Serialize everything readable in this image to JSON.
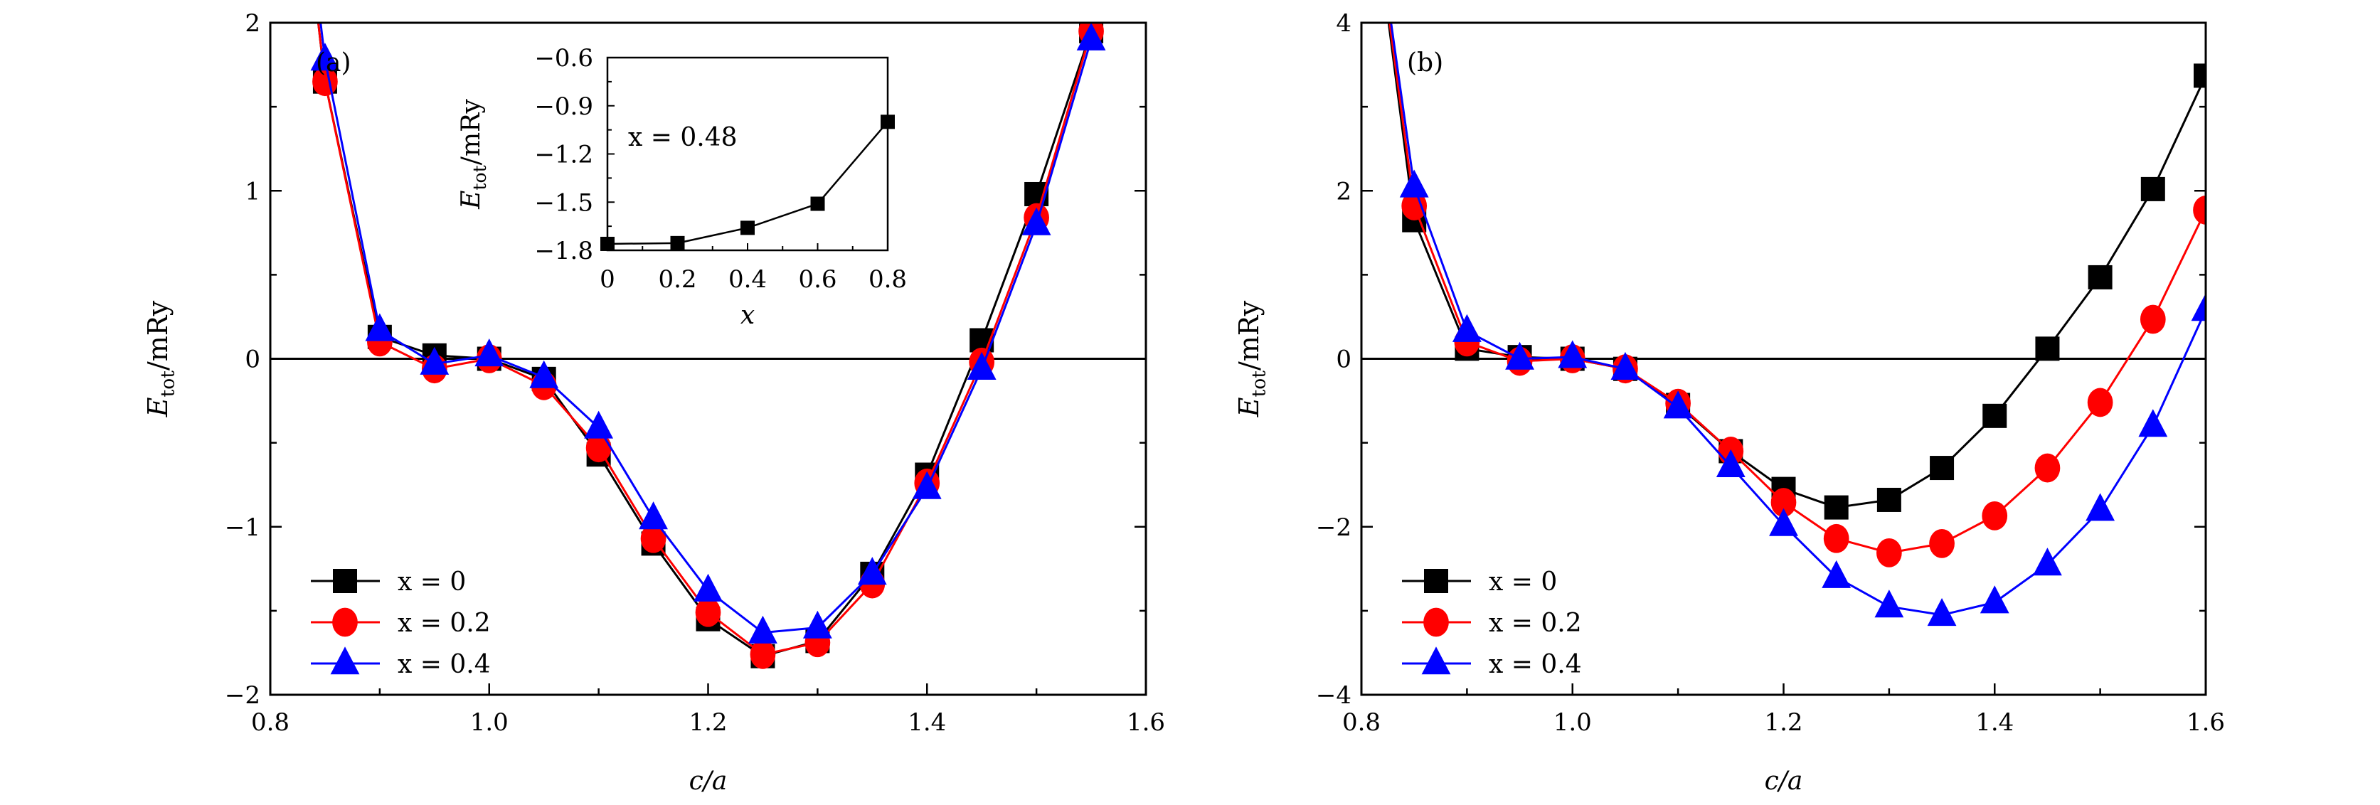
{
  "chart_data": [
    {
      "type": "line",
      "panel_label": "(a)",
      "xlabel": "c/a",
      "ylabel_main": "E",
      "ylabel_sub": "tot",
      "ylabel_unit": "/mRy",
      "xlim": [
        0.8,
        1.6
      ],
      "ylim": [
        -2,
        2
      ],
      "xticks": [
        0.8,
        1.0,
        1.2,
        1.4,
        1.6
      ],
      "xtick_labels": [
        "0.8",
        "1.0",
        "1.2",
        "1.4",
        "1.6"
      ],
      "yticks": [
        -2,
        -1,
        0,
        1,
        2
      ],
      "ytick_labels": [
        "−2",
        "−1",
        "0",
        "1",
        "2"
      ],
      "legend_position": "bottom-left",
      "x": [
        0.8,
        0.85,
        0.9,
        0.95,
        1.0,
        1.05,
        1.1,
        1.15,
        1.2,
        1.25,
        1.3,
        1.35,
        1.4,
        1.45,
        1.5,
        1.55
      ],
      "series": [
        {
          "name": "x = 0",
          "color": "#000000",
          "marker": "square",
          "values": [
            4.5,
            1.65,
            0.13,
            0.02,
            0.0,
            -0.12,
            -0.57,
            -1.1,
            -1.55,
            -1.77,
            -1.68,
            -1.28,
            -0.69,
            0.11,
            0.98,
            1.95
          ]
        },
        {
          "name": "x = 0.2",
          "color": "#ff0000",
          "marker": "circle",
          "values": [
            4.5,
            1.65,
            0.1,
            -0.06,
            0.0,
            -0.16,
            -0.53,
            -1.07,
            -1.51,
            -1.76,
            -1.69,
            -1.34,
            -0.74,
            -0.02,
            0.84,
            1.95
          ]
        },
        {
          "name": "x = 0.4",
          "color": "#0000ff",
          "marker": "triangle",
          "values": [
            4.5,
            1.78,
            0.17,
            -0.03,
            0.02,
            -0.11,
            -0.41,
            -0.95,
            -1.38,
            -1.63,
            -1.6,
            -1.28,
            -0.77,
            -0.06,
            0.8,
            1.9
          ]
        }
      ],
      "inset": {
        "type": "line",
        "annotation": "x = 0.48",
        "xlabel": "x",
        "ylabel_main": "E",
        "ylabel_sub": "tot",
        "ylabel_unit": "/mRy",
        "xlim": [
          0,
          0.8
        ],
        "ylim": [
          -1.8,
          -0.6
        ],
        "xticks": [
          0,
          0.2,
          0.4,
          0.6,
          0.8
        ],
        "xtick_labels": [
          "0",
          "0.2",
          "0.4",
          "0.6",
          "0.8"
        ],
        "yticks": [
          -1.8,
          -1.5,
          -1.2,
          -0.9,
          -0.6
        ],
        "ytick_labels": [
          "−1.8",
          "−1.5",
          "−1.2",
          "−0.9",
          "−0.6"
        ],
        "x": [
          0,
          0.2,
          0.4,
          0.6,
          0.8
        ],
        "values": [
          -1.76,
          -1.755,
          -1.66,
          -1.51,
          -1.0
        ],
        "color": "#000000",
        "marker": "square"
      }
    },
    {
      "type": "line",
      "panel_label": "(b)",
      "xlabel": "c/a",
      "ylabel_main": "E",
      "ylabel_sub": "tot",
      "ylabel_unit": "/mRy",
      "xlim": [
        0.8,
        1.6
      ],
      "ylim": [
        -4,
        4
      ],
      "xticks": [
        0.8,
        1.0,
        1.2,
        1.4,
        1.6
      ],
      "xtick_labels": [
        "0.8",
        "1.0",
        "1.2",
        "1.4",
        "1.6"
      ],
      "yticks": [
        -4,
        -2,
        0,
        2,
        4
      ],
      "ytick_labels": [
        "−4",
        "−2",
        "0",
        "2",
        "4"
      ],
      "legend_position": "bottom-left",
      "x": [
        0.8,
        0.85,
        0.9,
        0.95,
        1.0,
        1.05,
        1.1,
        1.15,
        1.2,
        1.25,
        1.3,
        1.35,
        1.4,
        1.45,
        1.5,
        1.55,
        1.6
      ],
      "series": [
        {
          "name": "x = 0",
          "color": "#000000",
          "marker": "square",
          "values": [
            6.5,
            1.65,
            0.12,
            0.02,
            0.0,
            -0.12,
            -0.55,
            -1.1,
            -1.55,
            -1.77,
            -1.68,
            -1.3,
            -0.68,
            0.12,
            0.97,
            2.02,
            3.37
          ]
        },
        {
          "name": "x = 0.2",
          "color": "#ff0000",
          "marker": "circle",
          "values": [
            6.5,
            1.82,
            0.2,
            -0.03,
            0.0,
            -0.12,
            -0.53,
            -1.1,
            -1.71,
            -2.14,
            -2.31,
            -2.2,
            -1.87,
            -1.3,
            -0.52,
            0.47,
            1.77
          ]
        },
        {
          "name": "x = 0.4",
          "color": "#0000ff",
          "marker": "triangle",
          "values": [
            6.5,
            2.05,
            0.33,
            0.0,
            0.02,
            -0.12,
            -0.58,
            -1.28,
            -1.98,
            -2.6,
            -2.95,
            -3.05,
            -2.9,
            -2.45,
            -1.8,
            -0.8,
            0.58
          ]
        }
      ]
    }
  ]
}
